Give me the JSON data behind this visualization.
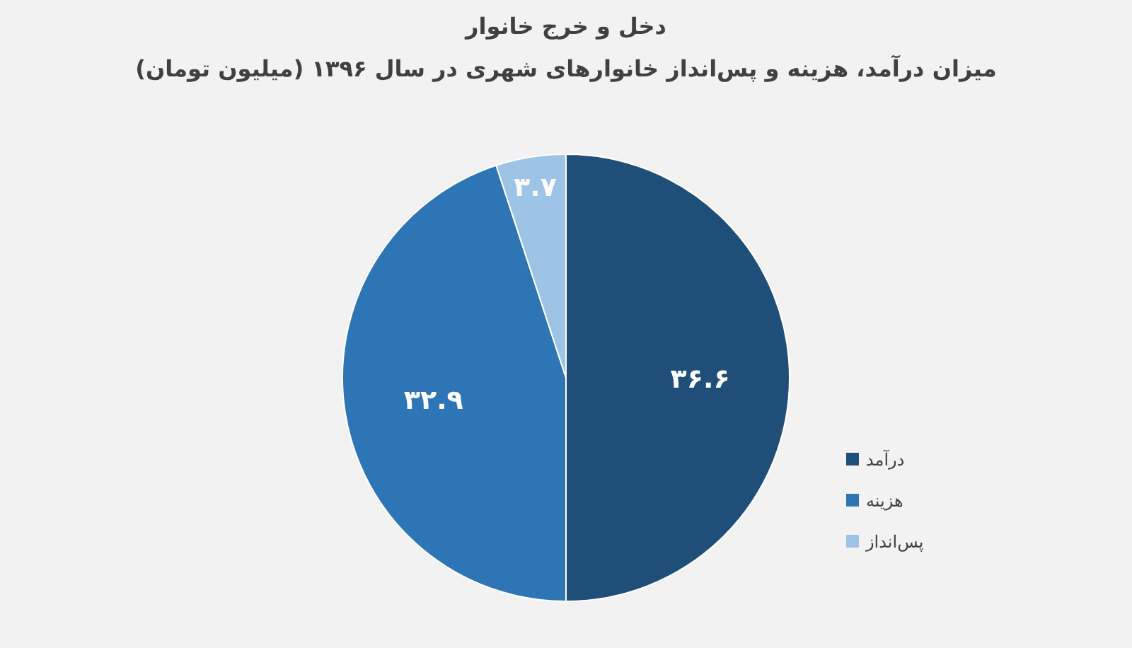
{
  "chart_data": {
    "type": "pie",
    "title": "دخل و خرج خانوار",
    "subtitle": "میزان درآمد، هزینه و پس‌انداز خانوارهای شهری در سال ۱۳۹۶ (میلیون تومان)",
    "categories": [
      "درآمد",
      "هزینه",
      "پس‌انداز"
    ],
    "values": [
      36.6,
      32.9,
      3.7
    ],
    "value_labels": [
      "۳۶.۶",
      "۳۲.۹",
      "۳.۷"
    ],
    "colors": [
      "#1f4e79",
      "#2e75b6",
      "#9dc3e6"
    ],
    "legend": "right"
  }
}
